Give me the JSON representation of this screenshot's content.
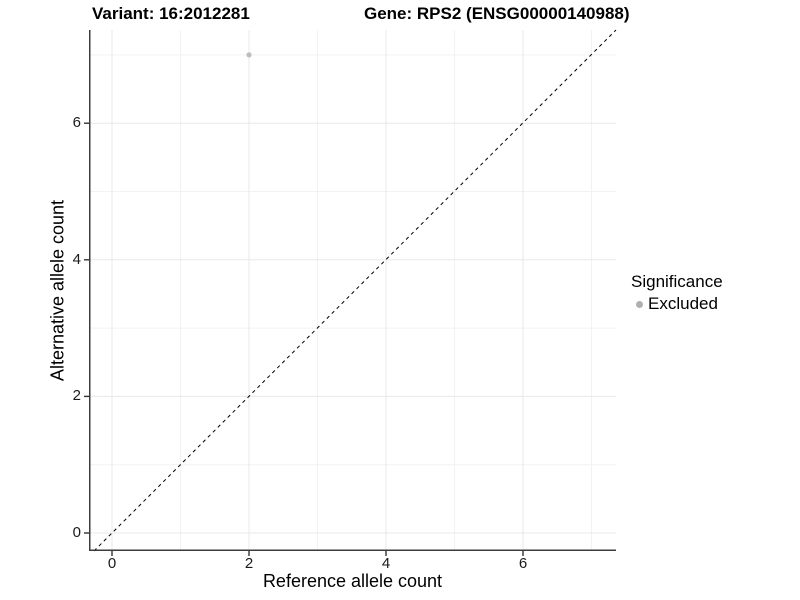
{
  "header": {
    "variant_title": "Variant: 16:2012281",
    "gene_title": "Gene: RPS2 (ENSG00000140988)"
  },
  "axes": {
    "x_label": "Reference allele count",
    "y_label": "Alternative allele count",
    "x_tick_labels": [
      "0",
      "2",
      "4",
      "6"
    ],
    "y_tick_labels": [
      "0",
      "2",
      "4",
      "6"
    ]
  },
  "legend": {
    "title": "Significance",
    "items": [
      {
        "label": "Excluded",
        "color": "#b0b0b0"
      }
    ]
  },
  "colors": {
    "point": "#bebebe",
    "grid_major": "#e8e8e8",
    "grid_minor": "#f2f2f2",
    "axis_line": "#3c3c3c",
    "reference_line": "#000000",
    "background": "#ffffff"
  },
  "chart_data": {
    "type": "scatter",
    "title": "Variant: 16:2012281   Gene: RPS2 (ENSG00000140988)",
    "xlabel": "Reference allele count",
    "ylabel": "Alternative allele count",
    "xlim": [
      -0.35,
      7.35
    ],
    "ylim": [
      -0.35,
      7.35
    ],
    "x_ticks": [
      0,
      2,
      4,
      6
    ],
    "y_ticks": [
      0,
      2,
      4,
      6
    ],
    "grid": true,
    "legend_position": "right",
    "series": [
      {
        "name": "Excluded",
        "color": "#bebebe",
        "points": [
          {
            "x": 2,
            "y": 7
          }
        ]
      }
    ],
    "reference_line": {
      "equation": "y = x",
      "style": "dashed",
      "color": "#000000"
    }
  }
}
